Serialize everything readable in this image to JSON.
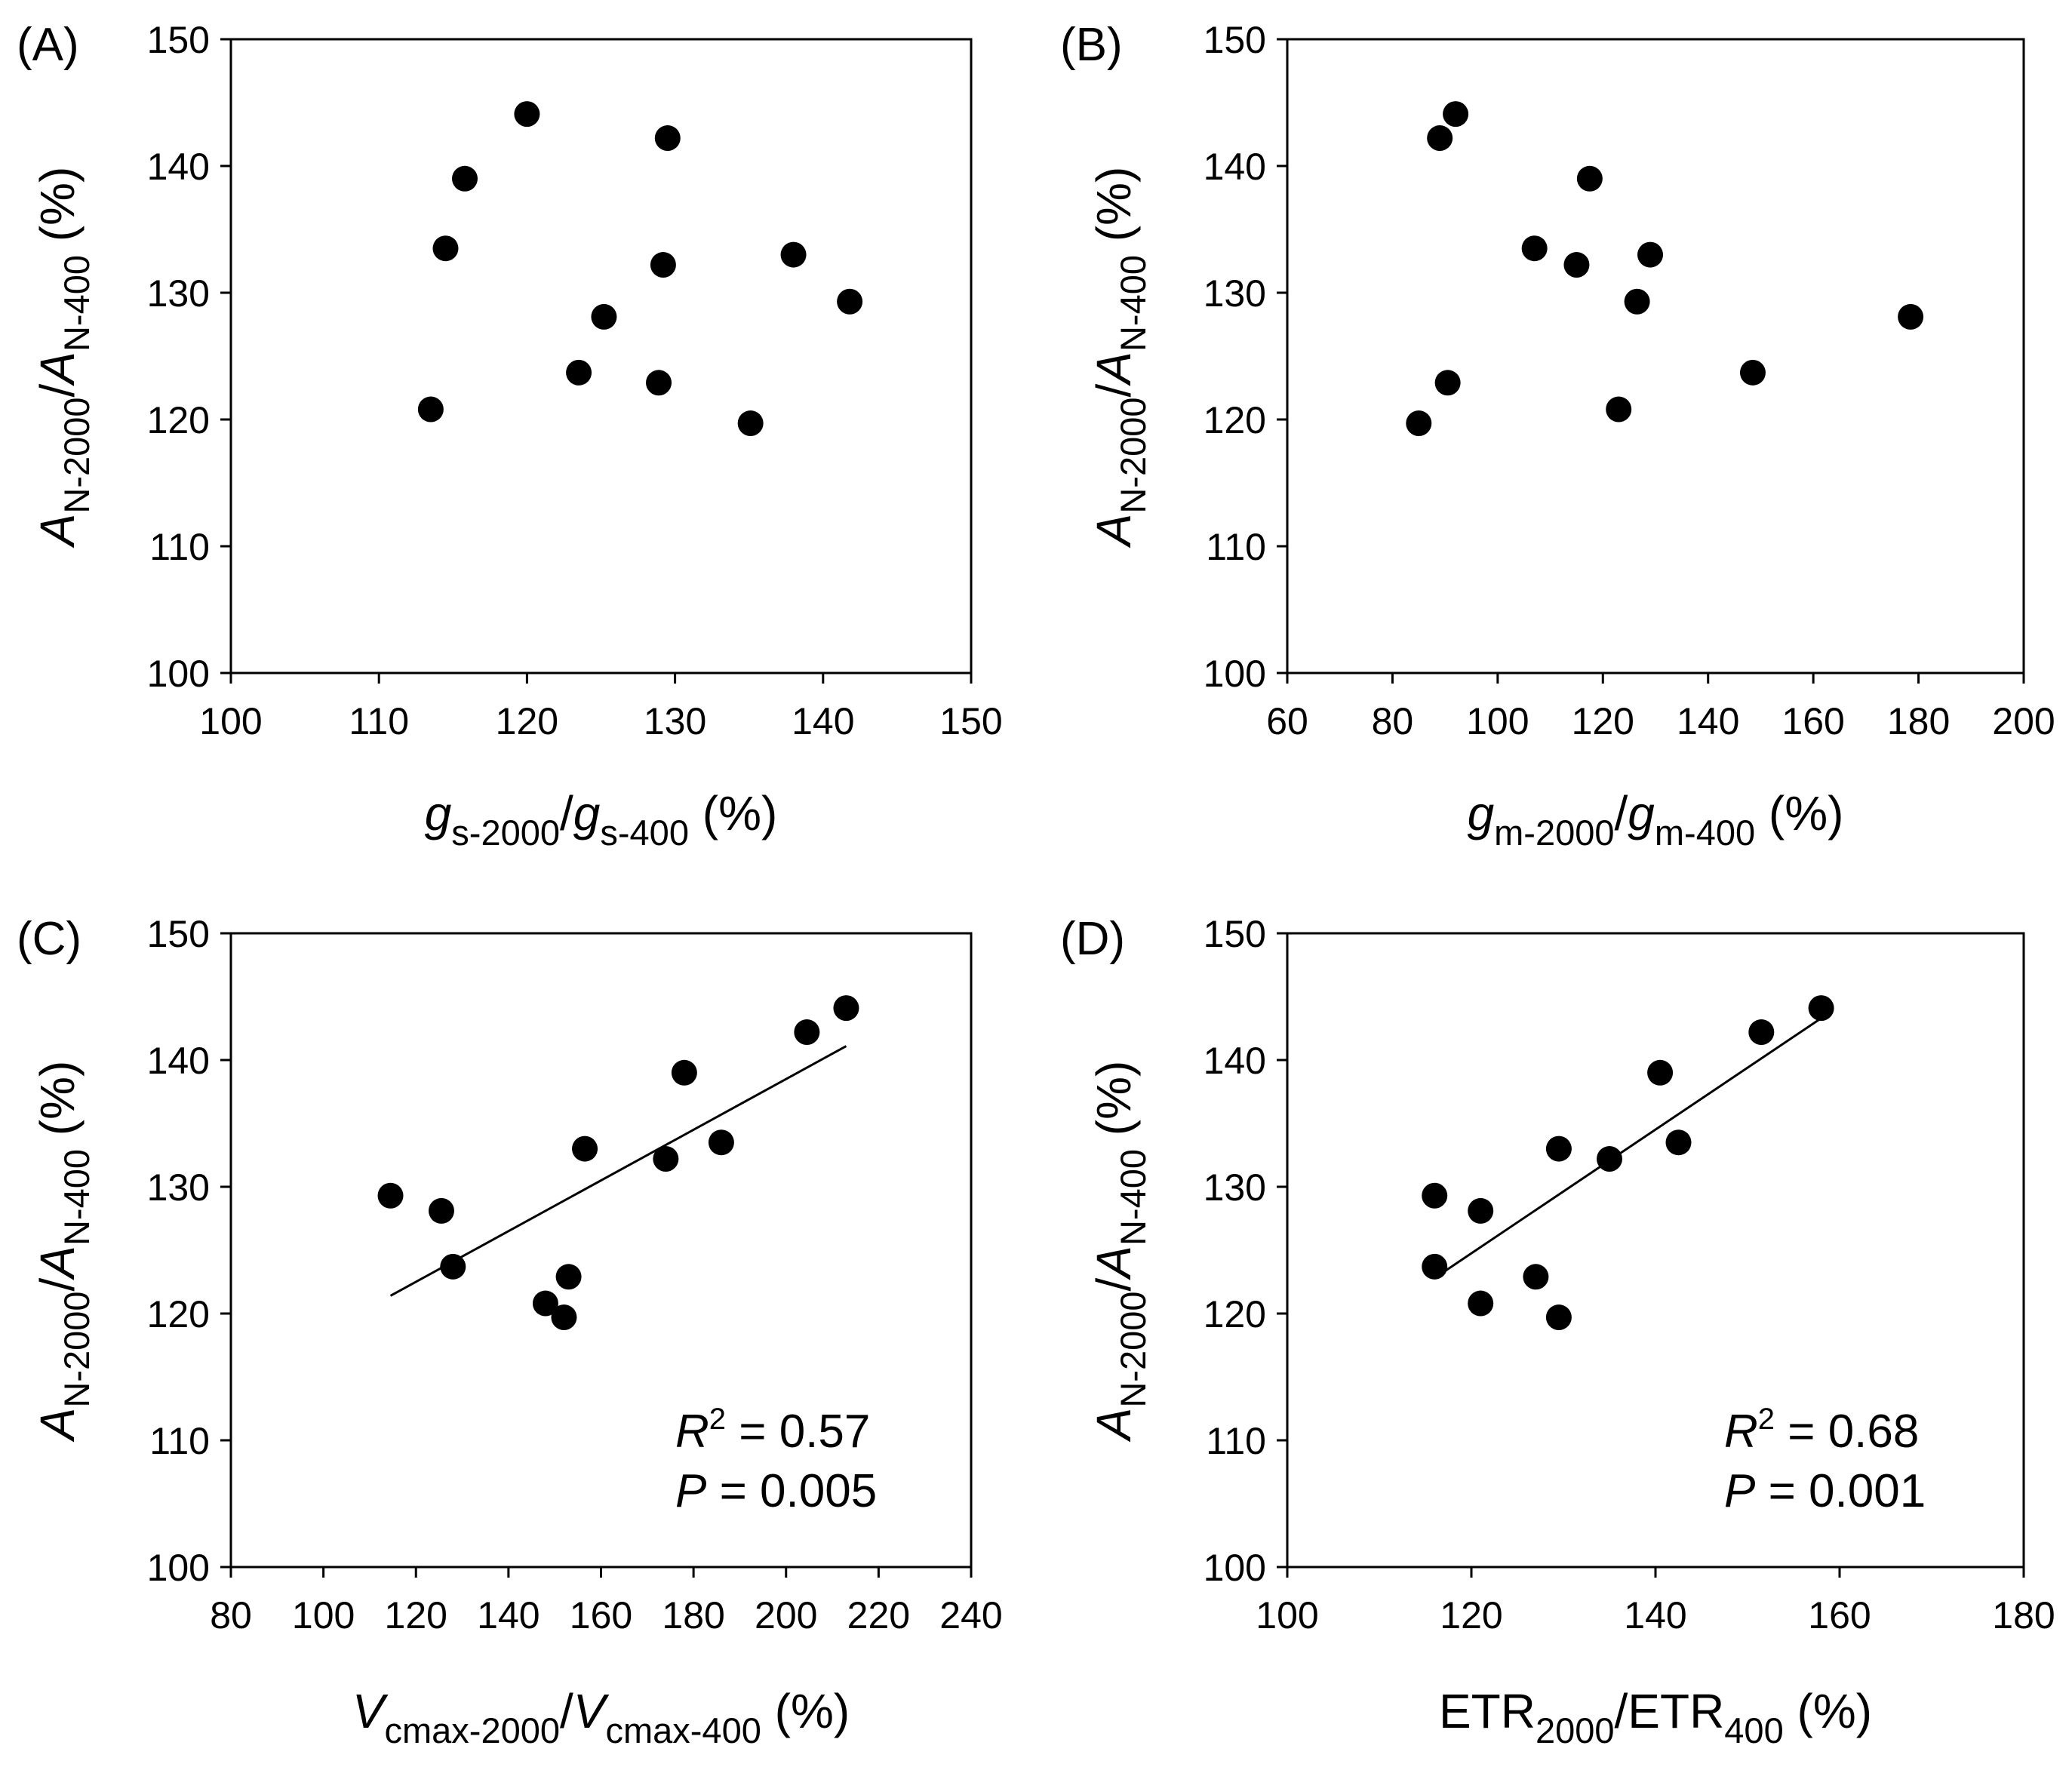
{
  "chart_data": [
    {
      "id": "A",
      "type": "scatter",
      "panel_label": "(A)",
      "xlim": [
        100,
        150
      ],
      "xticks": [
        100,
        110,
        120,
        130,
        140,
        150
      ],
      "ylim": [
        100,
        150
      ],
      "yticks": [
        100,
        110,
        120,
        130,
        140,
        150
      ],
      "xlabel": [
        {
          "text": "g",
          "style": "italic"
        },
        {
          "text": "s-2000",
          "style": "sub"
        },
        {
          "text": "/",
          "style": "normal"
        },
        {
          "text": "g",
          "style": "italic"
        },
        {
          "text": "s-400",
          "style": "sub"
        },
        {
          "text": " (%)",
          "style": "normal"
        }
      ],
      "ylabel": [
        {
          "text": "A",
          "style": "italic"
        },
        {
          "text": "N-2000",
          "style": "sub"
        },
        {
          "text": "/",
          "style": "normal"
        },
        {
          "text": "A",
          "style": "italic"
        },
        {
          "text": "N-400",
          "style": "sub"
        },
        {
          "text": " (%)",
          "style": "normal"
        }
      ],
      "points": [
        {
          "x": 113.5,
          "y": 120.8
        },
        {
          "x": 114.5,
          "y": 133.5
        },
        {
          "x": 115.8,
          "y": 139.0
        },
        {
          "x": 120.0,
          "y": 144.1
        },
        {
          "x": 123.5,
          "y": 123.7
        },
        {
          "x": 125.2,
          "y": 128.1
        },
        {
          "x": 128.9,
          "y": 122.9
        },
        {
          "x": 129.2,
          "y": 132.2
        },
        {
          "x": 129.5,
          "y": 142.2
        },
        {
          "x": 135.1,
          "y": 119.7
        },
        {
          "x": 138.0,
          "y": 133.0
        },
        {
          "x": 141.8,
          "y": 129.3
        }
      ]
    },
    {
      "id": "B",
      "type": "scatter",
      "panel_label": "(B)",
      "xlim": [
        60,
        200
      ],
      "xticks": [
        60,
        80,
        100,
        120,
        140,
        160,
        180,
        200
      ],
      "ylim": [
        100,
        150
      ],
      "yticks": [
        100,
        110,
        120,
        130,
        140,
        150
      ],
      "xlabel": [
        {
          "text": "g",
          "style": "italic"
        },
        {
          "text": "m-2000",
          "style": "sub"
        },
        {
          "text": "/",
          "style": "normal"
        },
        {
          "text": "g",
          "style": "italic"
        },
        {
          "text": "m-400",
          "style": "sub"
        },
        {
          "text": " (%)",
          "style": "normal"
        }
      ],
      "ylabel": [
        {
          "text": "A",
          "style": "italic"
        },
        {
          "text": "N-2000",
          "style": "sub"
        },
        {
          "text": "/",
          "style": "normal"
        },
        {
          "text": "A",
          "style": "italic"
        },
        {
          "text": "N-400",
          "style": "sub"
        },
        {
          "text": " (%)",
          "style": "normal"
        }
      ],
      "points": [
        {
          "x": 85.0,
          "y": 119.7
        },
        {
          "x": 89.0,
          "y": 142.2
        },
        {
          "x": 90.5,
          "y": 122.9
        },
        {
          "x": 92.0,
          "y": 144.1
        },
        {
          "x": 107.0,
          "y": 133.5
        },
        {
          "x": 115.0,
          "y": 132.2
        },
        {
          "x": 117.5,
          "y": 139.0
        },
        {
          "x": 123.0,
          "y": 120.8
        },
        {
          "x": 126.5,
          "y": 129.3
        },
        {
          "x": 129.0,
          "y": 133.0
        },
        {
          "x": 148.5,
          "y": 123.7
        },
        {
          "x": 178.5,
          "y": 128.1
        }
      ]
    },
    {
      "id": "C",
      "type": "scatter",
      "panel_label": "(C)",
      "xlim": [
        80,
        240
      ],
      "xticks": [
        80,
        100,
        120,
        140,
        160,
        180,
        200,
        220,
        240
      ],
      "ylim": [
        100,
        150
      ],
      "yticks": [
        100,
        110,
        120,
        130,
        140,
        150
      ],
      "xlabel": [
        {
          "text": "V",
          "style": "italic"
        },
        {
          "text": "cmax-2000",
          "style": "sub"
        },
        {
          "text": "/",
          "style": "normal"
        },
        {
          "text": "V",
          "style": "italic"
        },
        {
          "text": "cmax-400",
          "style": "sub"
        },
        {
          "text": " (%)",
          "style": "normal"
        }
      ],
      "ylabel": [
        {
          "text": "A",
          "style": "italic"
        },
        {
          "text": "N-2000",
          "style": "sub"
        },
        {
          "text": "/",
          "style": "normal"
        },
        {
          "text": "A",
          "style": "italic"
        },
        {
          "text": "N-400",
          "style": "sub"
        },
        {
          "text": " (%)",
          "style": "normal"
        }
      ],
      "points": [
        {
          "x": 114.5,
          "y": 129.3
        },
        {
          "x": 125.5,
          "y": 128.1
        },
        {
          "x": 128.0,
          "y": 123.7
        },
        {
          "x": 148.0,
          "y": 120.8
        },
        {
          "x": 152.0,
          "y": 119.7
        },
        {
          "x": 153.0,
          "y": 122.9
        },
        {
          "x": 156.5,
          "y": 133.0
        },
        {
          "x": 174.0,
          "y": 132.2
        },
        {
          "x": 178.0,
          "y": 139.0
        },
        {
          "x": 186.0,
          "y": 133.5
        },
        {
          "x": 204.5,
          "y": 142.2
        },
        {
          "x": 213.0,
          "y": 144.1
        }
      ],
      "fit_line": {
        "x": [
          114.5,
          213.0
        ],
        "y": [
          121.4,
          141.1
        ]
      },
      "stats": {
        "r2_label": "R",
        "r2_exp": "2",
        "r2_value": " = 0.57",
        "p_label": "P",
        "p_value": " = 0.005"
      }
    },
    {
      "id": "D",
      "type": "scatter",
      "panel_label": "(D)",
      "xlim": [
        100,
        180
      ],
      "xticks": [
        100,
        120,
        140,
        160,
        180
      ],
      "ylim": [
        100,
        150
      ],
      "yticks": [
        100,
        110,
        120,
        130,
        140,
        150
      ],
      "xlabel": [
        {
          "text": "ETR",
          "style": "normal"
        },
        {
          "text": "2000",
          "style": "sub"
        },
        {
          "text": "/ETR",
          "style": "normal"
        },
        {
          "text": "400",
          "style": "sub"
        },
        {
          "text": " (%)",
          "style": "normal"
        }
      ],
      "ylabel": [
        {
          "text": "A",
          "style": "italic"
        },
        {
          "text": "N-2000",
          "style": "sub"
        },
        {
          "text": "/",
          "style": "normal"
        },
        {
          "text": "A",
          "style": "italic"
        },
        {
          "text": "N-400",
          "style": "sub"
        },
        {
          "text": " (%)",
          "style": "normal"
        }
      ],
      "points": [
        {
          "x": 116.0,
          "y": 129.3
        },
        {
          "x": 116.0,
          "y": 123.7
        },
        {
          "x": 121.0,
          "y": 128.1
        },
        {
          "x": 121.0,
          "y": 120.8
        },
        {
          "x": 127.0,
          "y": 122.9
        },
        {
          "x": 129.5,
          "y": 133.0
        },
        {
          "x": 129.5,
          "y": 119.7
        },
        {
          "x": 135.0,
          "y": 132.2
        },
        {
          "x": 140.5,
          "y": 139.0
        },
        {
          "x": 142.5,
          "y": 133.5
        },
        {
          "x": 151.5,
          "y": 142.2
        },
        {
          "x": 158.0,
          "y": 144.1
        }
      ],
      "fit_line": {
        "x": [
          116.0,
          158.0
        ],
        "y": [
          122.8,
          143.3
        ]
      },
      "stats": {
        "r2_label": "R",
        "r2_exp": "2",
        "r2_value": " = 0.68",
        "p_label": "P",
        "p_value": " = 0.001"
      }
    }
  ]
}
